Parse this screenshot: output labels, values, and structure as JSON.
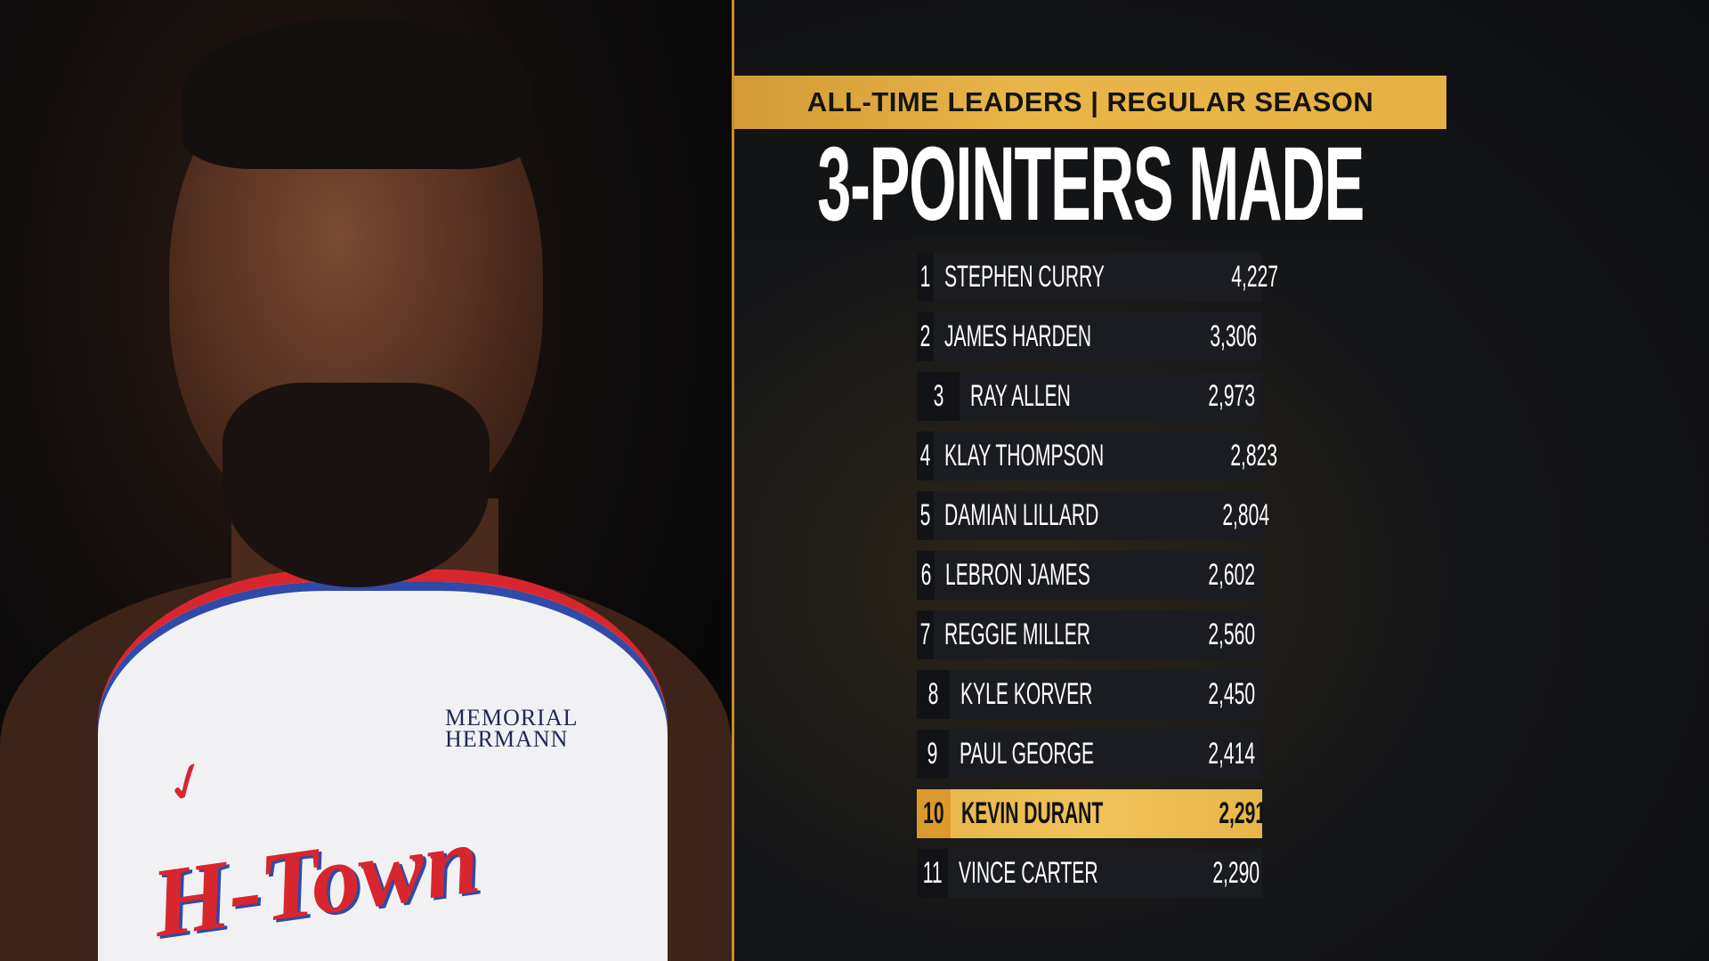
{
  "header": {
    "subtitle": "ALL-TIME LEADERS | REGULAR SEASON",
    "title": "3-POINTERS MADE"
  },
  "photo": {
    "logos": [
      "MEMORIAL HERMANN",
      "H-Town"
    ]
  },
  "colors": {
    "accent_gold": "#e8b548",
    "row_bg": "#1a1c21",
    "divider": "#c98d2a"
  },
  "leaders": [
    {
      "rank": "1",
      "name": "STEPHEN CURRY",
      "value": "4,227"
    },
    {
      "rank": "2",
      "name": "JAMES HARDEN",
      "value": "3,306"
    },
    {
      "rank": "3",
      "name": "RAY ALLEN",
      "value": "2,973"
    },
    {
      "rank": "4",
      "name": "KLAY THOMPSON",
      "value": "2,823"
    },
    {
      "rank": "5",
      "name": "DAMIAN LILLARD",
      "value": "2,804"
    },
    {
      "rank": "6",
      "name": "LEBRON JAMES",
      "value": "2,602"
    },
    {
      "rank": "7",
      "name": "REGGIE MILLER",
      "value": "2,560"
    },
    {
      "rank": "8",
      "name": "KYLE KORVER",
      "value": "2,450"
    },
    {
      "rank": "9",
      "name": "PAUL GEORGE",
      "value": "2,414"
    },
    {
      "rank": "10",
      "name": "KEVIN DURANT",
      "value": "2,291",
      "highlighted": true
    },
    {
      "rank": "11",
      "name": "VINCE CARTER",
      "value": "2,290"
    }
  ]
}
